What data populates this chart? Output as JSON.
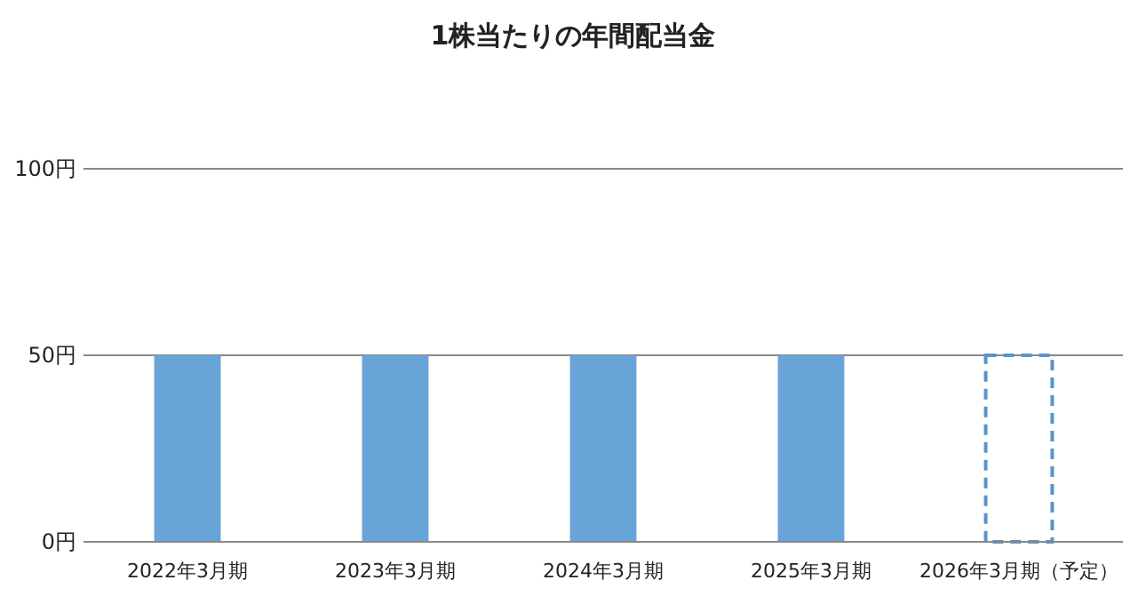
{
  "chart_data": {
    "type": "bar",
    "title": "1株当たりの年間配当金",
    "categories": [
      "2022年3月期",
      "2023年3月期",
      "2024年3月期",
      "2025年3月期",
      "2026年3月期（予定）"
    ],
    "series": [
      {
        "color": "#68a4d8",
        "values": [
          50,
          50,
          50,
          50,
          null
        ]
      },
      {
        "color": "#5b93cc",
        "line_style": "dashed",
        "values": [
          null,
          null,
          null,
          null,
          50
        ]
      }
    ],
    "ylim": [
      0,
      100
    ],
    "yticks": [
      {
        "value": 0,
        "label": "0円"
      },
      {
        "value": 50,
        "label": "50円"
      },
      {
        "value": 100,
        "label": "100円"
      }
    ],
    "grid": "y"
  }
}
